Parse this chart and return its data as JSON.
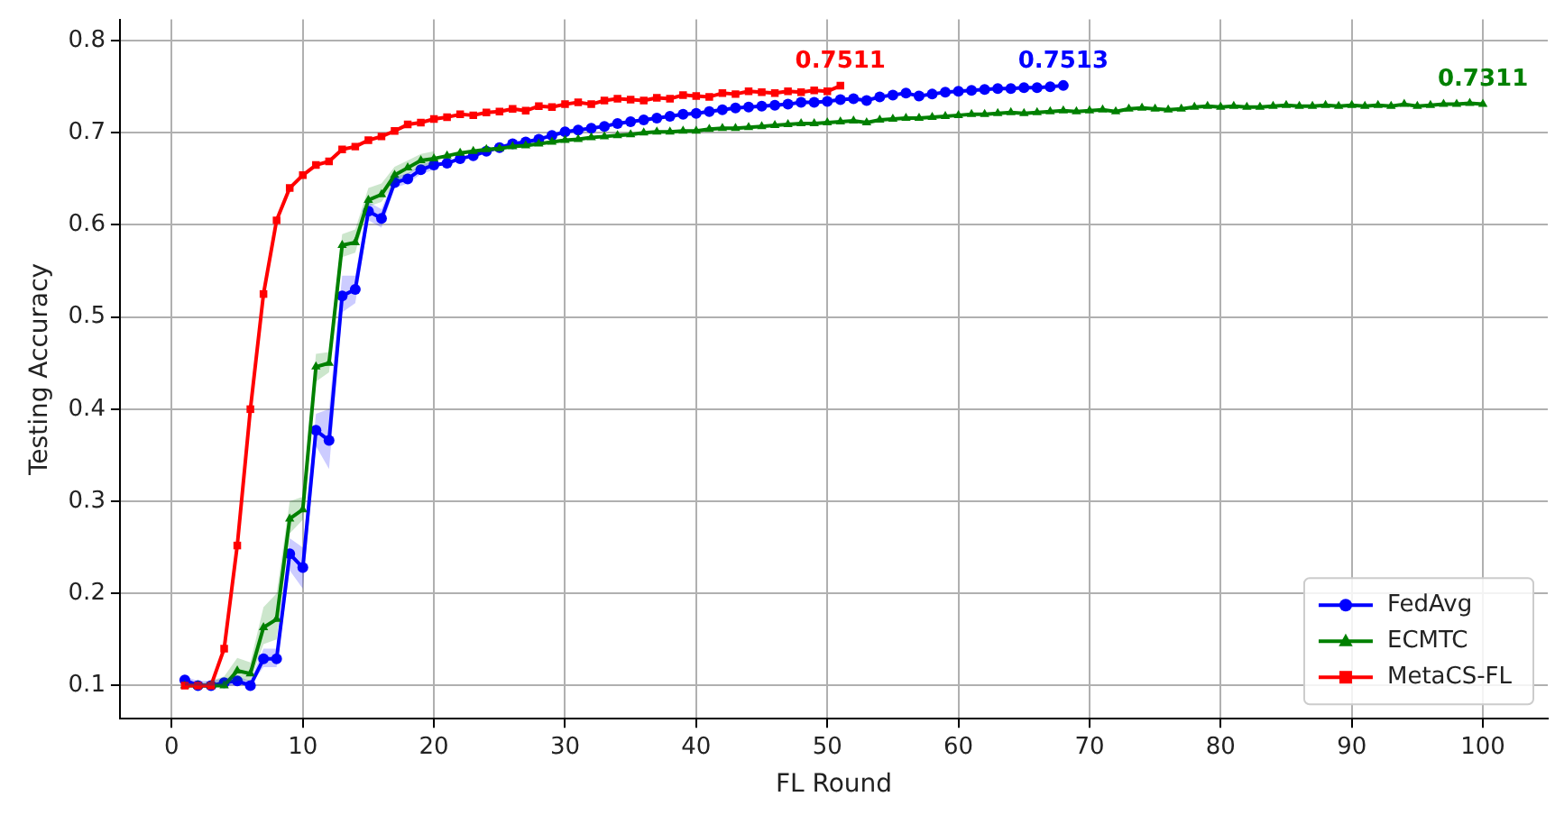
{
  "chart_data": {
    "type": "line",
    "xlabel": "FL Round",
    "ylabel": "Testing Accuracy",
    "xlim": [
      -3.95,
      104.95
    ],
    "ylim": [
      0.064,
      0.823
    ],
    "xticks": [
      0,
      10,
      20,
      30,
      40,
      50,
      60,
      70,
      80,
      90,
      100
    ],
    "yticks": [
      0.1,
      0.2,
      0.3,
      0.4,
      0.5,
      0.6,
      0.7,
      0.8
    ],
    "grid": true,
    "legend": "bottom right",
    "line_style": "solid",
    "annotations": [
      {
        "text": "0.7513",
        "x": 68,
        "y": 0.7513
      },
      {
        "text": "0.7311",
        "x": 100,
        "y": 0.7311
      },
      {
        "text": "0.7511",
        "x": 51,
        "y": 0.7511
      }
    ],
    "series": [
      {
        "name": "FedAvg",
        "color": "#0000ff",
        "marker": "circle",
        "x": [
          1,
          2,
          3,
          4,
          5,
          6,
          7,
          8,
          9,
          10,
          11,
          12,
          13,
          14,
          15,
          16,
          17,
          18,
          19,
          20,
          21,
          22,
          23,
          24,
          25,
          26,
          27,
          28,
          29,
          30,
          31,
          32,
          33,
          34,
          35,
          36,
          37,
          38,
          39,
          40,
          41,
          42,
          43,
          44,
          45,
          46,
          47,
          48,
          49,
          50,
          51,
          52,
          53,
          54,
          55,
          56,
          57,
          58,
          59,
          60,
          61,
          62,
          63,
          64,
          65,
          66,
          67,
          68
        ],
        "values": [
          0.106,
          0.1,
          0.1,
          0.103,
          0.105,
          0.1,
          0.129,
          0.129,
          0.243,
          0.228,
          0.377,
          0.366,
          0.523,
          0.53,
          0.615,
          0.607,
          0.646,
          0.65,
          0.66,
          0.665,
          0.667,
          0.672,
          0.675,
          0.68,
          0.684,
          0.688,
          0.69,
          0.693,
          0.697,
          0.701,
          0.703,
          0.705,
          0.707,
          0.71,
          0.712,
          0.714,
          0.716,
          0.718,
          0.72,
          0.721,
          0.723,
          0.725,
          0.727,
          0.728,
          0.729,
          0.73,
          0.731,
          0.733,
          0.733,
          0.734,
          0.736,
          0.737,
          0.735,
          0.739,
          0.741,
          0.743,
          0.74,
          0.742,
          0.744,
          0.745,
          0.746,
          0.747,
          0.748,
          0.748,
          0.749,
          0.749,
          0.75,
          0.7513
        ],
        "lower": [
          0.1,
          0.1,
          0.1,
          0.1,
          0.1,
          0.1,
          0.12,
          0.12,
          0.225,
          0.205,
          0.36,
          0.335,
          0.505,
          0.515,
          0.605,
          0.597,
          0.64,
          0.645,
          0.655,
          0.66,
          null,
          null,
          null,
          null,
          null,
          null,
          null,
          null,
          null,
          null,
          null,
          null,
          null,
          null,
          null,
          null,
          null,
          null,
          null,
          null,
          null,
          null,
          null,
          null,
          null,
          null,
          null,
          null,
          null,
          null,
          null,
          null,
          null,
          null,
          null,
          null,
          null,
          null,
          null,
          null,
          null,
          null,
          null,
          null,
          null,
          null,
          null,
          null
        ],
        "upper": [
          0.11,
          0.105,
          0.105,
          0.108,
          0.11,
          0.105,
          0.14,
          0.14,
          0.26,
          0.25,
          0.395,
          0.4,
          0.545,
          0.545,
          0.625,
          0.617,
          0.652,
          0.656,
          0.665,
          0.67,
          null,
          null,
          null,
          null,
          null,
          null,
          null,
          null,
          null,
          null,
          null,
          null,
          null,
          null,
          null,
          null,
          null,
          null,
          null,
          null,
          null,
          null,
          null,
          null,
          null,
          null,
          null,
          null,
          null,
          null,
          null,
          null,
          null,
          null,
          null,
          null,
          null,
          null,
          null,
          null,
          null,
          null,
          null,
          null,
          null,
          null,
          null,
          null
        ]
      },
      {
        "name": "ECMTC",
        "color": "#008000",
        "marker": "triangle",
        "x": [
          1,
          2,
          3,
          4,
          5,
          6,
          7,
          8,
          9,
          10,
          11,
          12,
          13,
          14,
          15,
          16,
          17,
          18,
          19,
          20,
          21,
          22,
          23,
          24,
          25,
          26,
          27,
          28,
          29,
          30,
          31,
          32,
          33,
          34,
          35,
          36,
          37,
          38,
          39,
          40,
          41,
          42,
          43,
          44,
          45,
          46,
          47,
          48,
          49,
          50,
          51,
          52,
          53,
          54,
          55,
          56,
          57,
          58,
          59,
          60,
          61,
          62,
          63,
          64,
          65,
          66,
          67,
          68,
          69,
          70,
          71,
          72,
          73,
          74,
          75,
          76,
          77,
          78,
          79,
          80,
          81,
          82,
          83,
          84,
          85,
          86,
          87,
          88,
          89,
          90,
          91,
          92,
          93,
          94,
          95,
          96,
          97,
          98,
          99,
          100
        ],
        "values": [
          0.1,
          0.1,
          0.1,
          0.1,
          0.116,
          0.113,
          0.163,
          0.172,
          0.281,
          0.291,
          0.446,
          0.45,
          0.578,
          0.581,
          0.627,
          0.633,
          0.654,
          0.662,
          0.67,
          0.672,
          0.675,
          0.678,
          0.68,
          0.682,
          0.683,
          0.685,
          0.686,
          0.688,
          0.69,
          0.692,
          0.693,
          0.695,
          0.696,
          0.697,
          0.698,
          0.7,
          0.701,
          0.701,
          0.702,
          0.702,
          0.704,
          0.705,
          0.705,
          0.706,
          0.707,
          0.708,
          0.709,
          0.71,
          0.71,
          0.711,
          0.712,
          0.713,
          0.711,
          0.714,
          0.715,
          0.716,
          0.716,
          0.717,
          0.718,
          0.719,
          0.72,
          0.72,
          0.721,
          0.722,
          0.721,
          0.722,
          0.723,
          0.724,
          0.723,
          0.724,
          0.725,
          0.723,
          0.726,
          0.727,
          0.726,
          0.725,
          0.726,
          0.728,
          0.729,
          0.728,
          0.729,
          0.728,
          0.728,
          0.729,
          0.73,
          0.729,
          0.729,
          0.73,
          0.729,
          0.73,
          0.729,
          0.73,
          0.729,
          0.731,
          0.729,
          0.73,
          0.731,
          0.731,
          0.732,
          0.7311
        ],
        "lower": [
          0.1,
          0.1,
          0.1,
          0.1,
          0.105,
          0.105,
          0.145,
          0.15,
          0.265,
          0.28,
          0.43,
          0.44,
          0.565,
          0.57,
          0.62,
          0.625,
          0.645,
          0.655,
          0.663,
          0.665,
          null,
          null,
          null,
          null,
          null,
          null,
          null,
          null,
          null,
          null,
          null,
          null,
          null,
          null,
          null,
          null,
          null,
          null,
          null,
          null,
          null,
          null,
          null,
          null,
          null,
          null,
          null,
          null,
          null,
          null,
          null,
          null,
          null,
          null,
          null,
          null,
          null,
          null,
          null,
          null,
          null,
          null,
          null,
          null,
          null,
          null,
          null,
          null,
          null,
          null,
          null,
          null,
          null,
          null,
          null,
          null,
          null,
          null,
          null,
          null,
          null,
          null,
          null,
          null,
          null,
          null,
          null,
          null,
          null,
          null,
          null,
          null,
          null,
          null,
          null,
          null,
          null,
          null,
          null,
          null
        ],
        "upper": [
          0.102,
          0.102,
          0.105,
          0.11,
          0.13,
          0.125,
          0.185,
          0.2,
          0.3,
          0.305,
          0.46,
          0.462,
          0.59,
          0.595,
          0.64,
          0.645,
          0.663,
          0.67,
          0.677,
          0.68,
          null,
          null,
          null,
          null,
          null,
          null,
          null,
          null,
          null,
          null,
          null,
          null,
          null,
          null,
          null,
          null,
          null,
          null,
          null,
          null,
          null,
          null,
          null,
          null,
          null,
          null,
          null,
          null,
          null,
          null,
          null,
          null,
          null,
          null,
          null,
          null,
          null,
          null,
          null,
          null,
          null,
          null,
          null,
          null,
          null,
          null,
          null,
          null,
          null,
          null,
          null,
          null,
          null,
          null,
          null,
          null,
          null,
          null,
          null,
          null,
          null,
          null,
          null,
          null,
          null,
          null,
          null,
          null,
          null,
          null,
          null,
          null,
          null,
          null,
          null,
          null,
          null,
          null,
          null,
          null
        ]
      },
      {
        "name": "MetaCS-FL",
        "color": "#ff0000",
        "marker": "square",
        "x": [
          1,
          2,
          3,
          4,
          5,
          6,
          7,
          8,
          9,
          10,
          11,
          12,
          13,
          14,
          15,
          16,
          17,
          18,
          19,
          20,
          21,
          22,
          23,
          24,
          25,
          26,
          27,
          28,
          29,
          30,
          31,
          32,
          33,
          34,
          35,
          36,
          37,
          38,
          39,
          40,
          41,
          42,
          43,
          44,
          45,
          46,
          47,
          48,
          49,
          50,
          51
        ],
        "values": [
          0.1,
          0.1,
          0.1,
          0.14,
          0.252,
          0.4,
          0.525,
          0.605,
          0.64,
          0.654,
          0.665,
          0.669,
          0.682,
          0.685,
          0.692,
          0.696,
          0.702,
          0.709,
          0.711,
          0.715,
          0.717,
          0.72,
          0.719,
          0.722,
          0.723,
          0.726,
          0.724,
          0.729,
          0.728,
          0.731,
          0.733,
          0.731,
          0.735,
          0.737,
          0.736,
          0.735,
          0.738,
          0.737,
          0.741,
          0.74,
          0.739,
          0.743,
          0.742,
          0.745,
          0.744,
          0.743,
          0.745,
          0.744,
          0.746,
          0.745,
          0.7511
        ]
      }
    ]
  }
}
